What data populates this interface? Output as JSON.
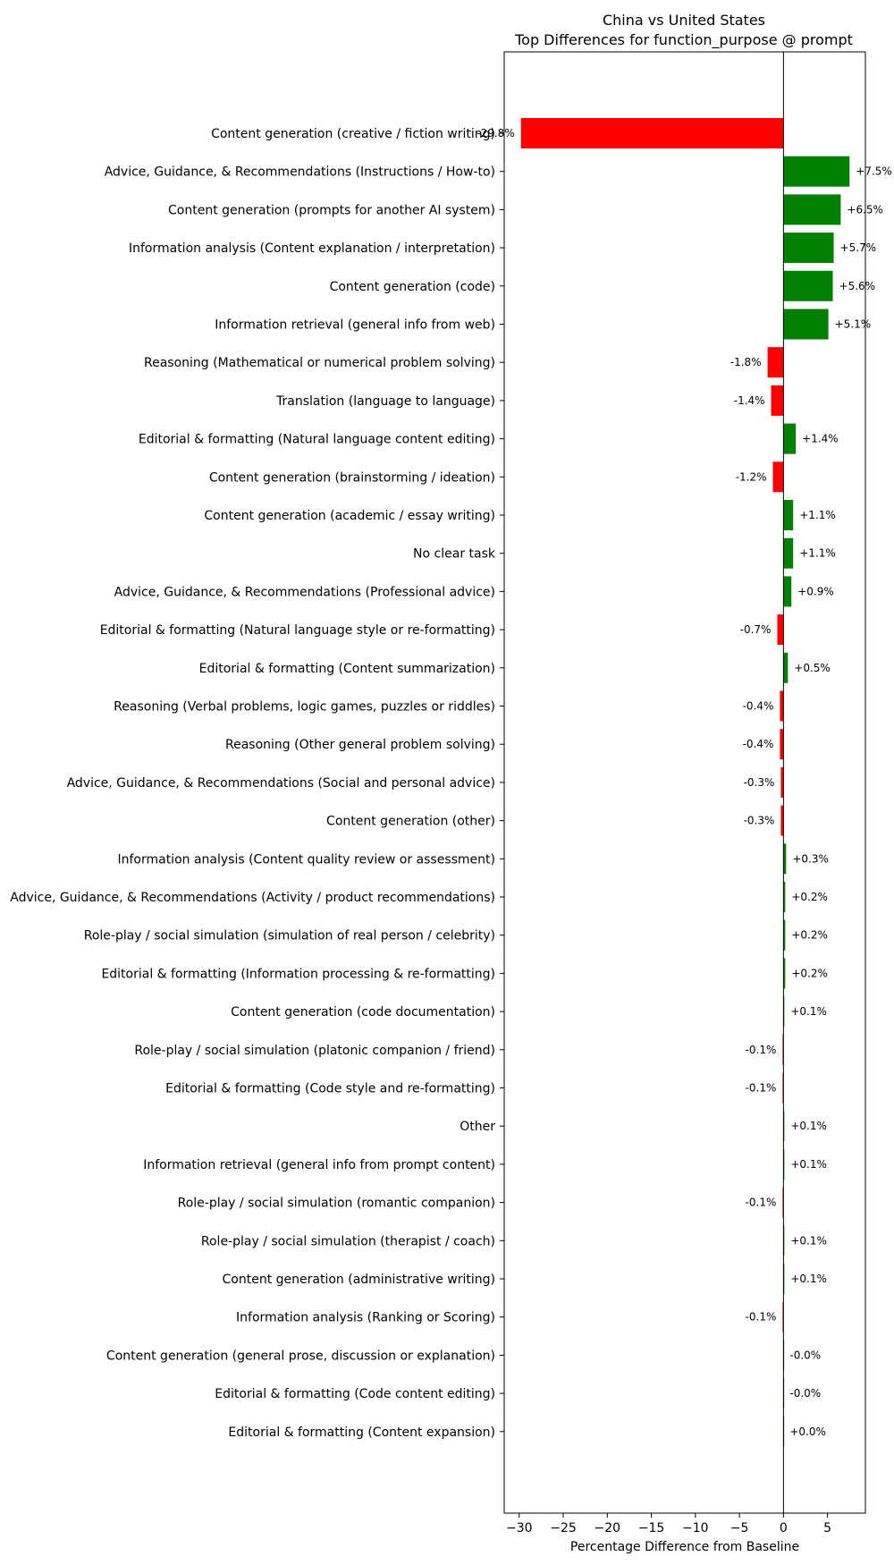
{
  "chart_data": {
    "type": "bar",
    "orientation": "horizontal",
    "title": "China vs United States",
    "subtitle": "Top Differences for function_purpose @ prompt",
    "xlabel": "Percentage Difference from Baseline",
    "ylabel": "",
    "xlim": [
      -31.7,
      9.3
    ],
    "xticks": [
      -30,
      -25,
      -20,
      -15,
      -10,
      -5,
      0,
      5
    ],
    "xtick_labels": [
      "−30",
      "−25",
      "−20",
      "−15",
      "−10",
      "−5",
      "0",
      "5"
    ],
    "grid": false,
    "legend": "none",
    "positive_color": "#008000",
    "negative_color": "#ff0000",
    "categories": [
      "Content generation (creative / fiction writing)",
      "Advice, Guidance, & Recommendations (Instructions / How-to)",
      "Content generation (prompts for another AI system)",
      "Information analysis (Content explanation / interpretation)",
      "Content generation (code)",
      "Information retrieval (general info from web)",
      "Reasoning (Mathematical or numerical problem solving)",
      "Translation (language to language)",
      "Editorial & formatting (Natural language content editing)",
      "Content generation (brainstorming / ideation)",
      "Content generation (academic / essay writing)",
      "No clear task",
      "Advice, Guidance, & Recommendations (Professional advice)",
      "Editorial & formatting (Natural language style or re-formatting)",
      "Editorial & formatting (Content summarization)",
      "Reasoning (Verbal problems, logic games, puzzles or riddles)",
      "Reasoning (Other general problem solving)",
      "Advice, Guidance, & Recommendations (Social and personal advice)",
      "Content generation (other)",
      "Information analysis (Content quality review or assessment)",
      "Advice, Guidance, & Recommendations (Activity / product recommendations)",
      "Role-play / social simulation (simulation of real person / celebrity)",
      "Editorial & formatting (Information processing & re-formatting)",
      "Content generation (code documentation)",
      "Role-play / social simulation (platonic companion / friend)",
      "Editorial & formatting (Code style and re-formatting)",
      "Other",
      "Information retrieval (general info from prompt content)",
      "Role-play / social simulation (romantic companion)",
      "Role-play / social simulation (therapist / coach)",
      "Content generation (administrative writing)",
      "Information analysis (Ranking or Scoring)",
      "Content generation (general prose, discussion or explanation)",
      "Editorial & formatting (Code content editing)",
      "Editorial & formatting (Content expansion)"
    ],
    "values": [
      -29.8,
      7.5,
      6.5,
      5.7,
      5.6,
      5.1,
      -1.8,
      -1.4,
      1.4,
      -1.2,
      1.1,
      1.1,
      0.9,
      -0.7,
      0.5,
      -0.4,
      -0.4,
      -0.3,
      -0.3,
      0.3,
      0.2,
      0.2,
      0.2,
      0.1,
      -0.1,
      -0.1,
      0.1,
      0.1,
      -0.1,
      0.1,
      0.1,
      -0.1,
      -0.0,
      -0.0,
      0.0
    ],
    "value_labels": [
      "-29.8%",
      "+7.5%",
      "+6.5%",
      "+5.7%",
      "+5.6%",
      "+5.1%",
      "-1.8%",
      "-1.4%",
      "+1.4%",
      "-1.2%",
      "+1.1%",
      "+1.1%",
      "+0.9%",
      "-0.7%",
      "+0.5%",
      "-0.4%",
      "-0.4%",
      "-0.3%",
      "-0.3%",
      "+0.3%",
      "+0.2%",
      "+0.2%",
      "+0.2%",
      "+0.1%",
      "-0.1%",
      "-0.1%",
      "+0.1%",
      "+0.1%",
      "-0.1%",
      "+0.1%",
      "+0.1%",
      "-0.1%",
      "-0.0%",
      "-0.0%",
      "+0.0%"
    ]
  }
}
